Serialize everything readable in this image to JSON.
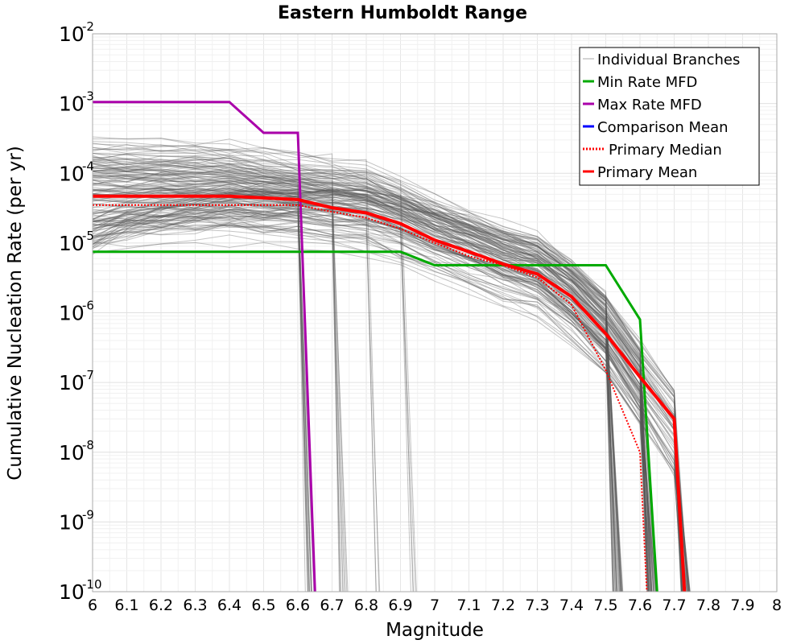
{
  "chart_data": {
    "type": "line",
    "title": "Eastern Humboldt Range",
    "xlabel": "Magnitude",
    "ylabel": "Cumulative Nucleation Rate (per yr)",
    "xlim": [
      6,
      8
    ],
    "ylim": [
      1e-10,
      0.01
    ],
    "yscale": "log",
    "grid": true,
    "legend_position": "top-right",
    "x_ticks": [
      "6",
      "6.1",
      "6.2",
      "6.3",
      "6.4",
      "6.5",
      "6.6",
      "6.7",
      "6.8",
      "6.9",
      "7",
      "7.1",
      "7.2",
      "7.3",
      "7.4",
      "7.5",
      "7.6",
      "7.7",
      "7.8",
      "7.9",
      "8"
    ],
    "y_ticks": [
      {
        "base": "10",
        "exp": "-2"
      },
      {
        "base": "10",
        "exp": "-3"
      },
      {
        "base": "10",
        "exp": "-4"
      },
      {
        "base": "10",
        "exp": "-5"
      },
      {
        "base": "10",
        "exp": "-6"
      },
      {
        "base": "10",
        "exp": "-7"
      },
      {
        "base": "10",
        "exp": "-8"
      },
      {
        "base": "10",
        "exp": "-9"
      },
      {
        "base": "10",
        "exp": "-10"
      }
    ],
    "series": [
      {
        "name": "Individual Branches",
        "color": "#555555",
        "style": "thin",
        "note_count_shown": "many",
        "x": [
          6,
          6.1,
          6.2,
          6.3,
          6.4,
          6.5,
          6.6,
          6.7,
          6.8,
          6.9,
          7.0,
          7.1,
          7.2,
          7.3,
          7.4,
          7.5,
          7.6,
          7.7,
          7.72
        ],
        "values": [
          5e-05,
          5e-05,
          5e-05,
          5e-05,
          5e-05,
          4.5e-05,
          4e-05,
          3.5e-05,
          3e-05,
          2e-05,
          1.2e-05,
          8e-06,
          5e-06,
          3.5e-06,
          1.5e-06,
          5e-07,
          1e-07,
          2e-08,
          1e-10
        ]
      },
      {
        "name": "Min Rate MFD",
        "color": "#00aa00",
        "style": "solid",
        "x": [
          6,
          6.9,
          7.0,
          7.5,
          7.6,
          7.65
        ],
        "values": [
          7.5e-06,
          7.5e-06,
          4.8e-06,
          4.8e-06,
          8e-07,
          1e-10
        ]
      },
      {
        "name": "Max Rate MFD",
        "color": "#aa00aa",
        "style": "solid",
        "x": [
          6,
          6.4,
          6.5,
          6.6,
          6.65
        ],
        "values": [
          0.00105,
          0.00105,
          0.00038,
          0.00038,
          1e-10
        ]
      },
      {
        "name": "Comparison Mean",
        "color": "#0000ff",
        "style": "solid",
        "x": [],
        "values": []
      },
      {
        "name": "Primary Median",
        "color": "#ff0000",
        "style": "dotted",
        "x": [
          6,
          6.6,
          6.7,
          6.8,
          6.9,
          7.0,
          7.1,
          7.2,
          7.3,
          7.4,
          7.5,
          7.6,
          7.62
        ],
        "values": [
          3.5e-05,
          3.5e-05,
          2.8e-05,
          2.3e-05,
          1.6e-05,
          1e-05,
          6.5e-06,
          4.8e-06,
          3.2e-06,
          1.3e-06,
          1.5e-07,
          1e-08,
          1e-10
        ]
      },
      {
        "name": "Primary Mean",
        "color": "#ff0000",
        "style": "solid",
        "x": [
          6,
          6.4,
          6.6,
          6.7,
          6.8,
          6.9,
          7.0,
          7.1,
          7.2,
          7.3,
          7.4,
          7.5,
          7.6,
          7.7,
          7.73
        ],
        "values": [
          4.7e-05,
          4.7e-05,
          4.2e-05,
          3.2e-05,
          2.7e-05,
          1.9e-05,
          1.1e-05,
          7.5e-06,
          5e-06,
          3.6e-06,
          1.7e-06,
          5e-07,
          1.2e-07,
          3e-08,
          1e-10
        ]
      }
    ]
  }
}
